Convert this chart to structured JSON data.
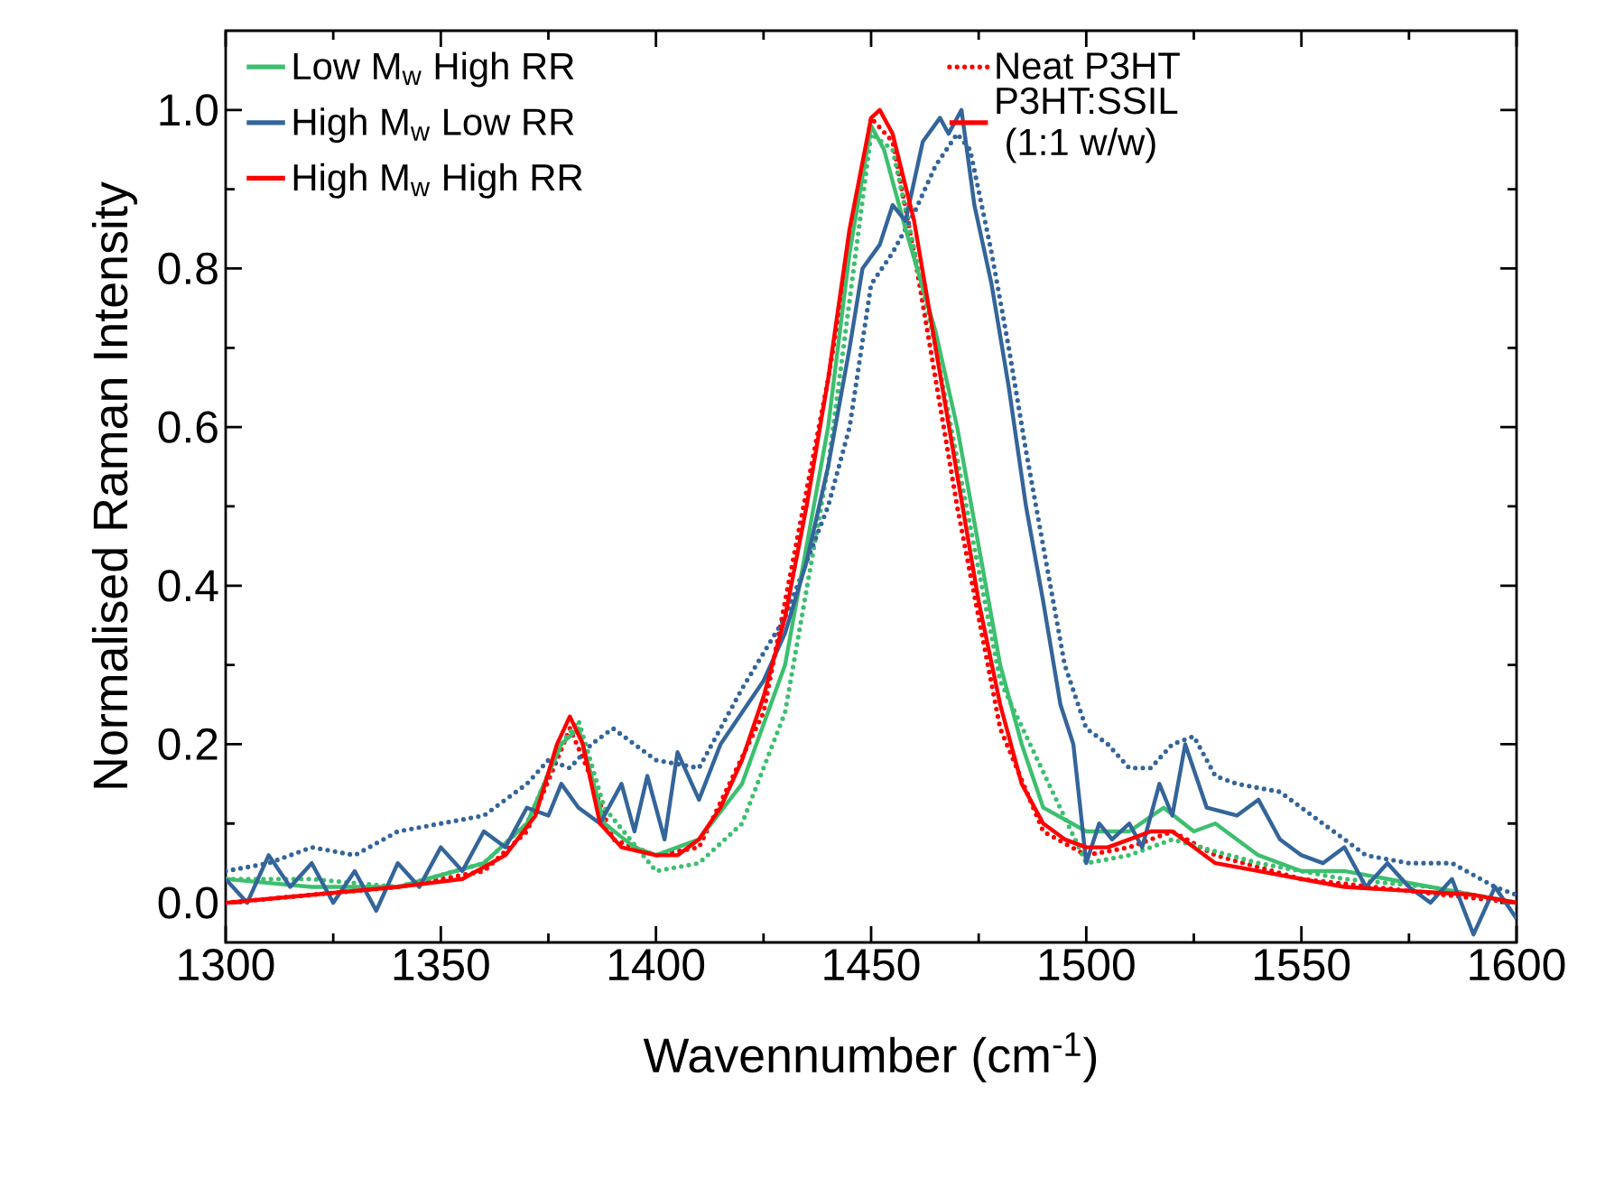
{
  "chart_data": {
    "type": "line",
    "xlabel": "Wavennumber (cm$^{-1}$)",
    "ylabel": "Normalised Raman Intensity",
    "xlim": [
      1300,
      1600
    ],
    "xticks": [
      1300,
      1350,
      1400,
      1450,
      1500,
      1550,
      1600
    ],
    "ylim": [
      -0.05,
      1.1
    ],
    "yticks": [
      {
        "value": 0,
        "label": "0.0"
      },
      {
        "value": 0.2,
        "label": "0.2"
      },
      {
        "value": 0.4,
        "label": "0.4"
      },
      {
        "value": 0.6,
        "label": "0.6"
      },
      {
        "value": 0.8,
        "label": "0.8"
      },
      {
        "value": 1,
        "label": "1.0"
      }
    ],
    "grid": false,
    "legend": "top",
    "marker": "none",
    "annotations": [
      "P3HT:SSIL",
      "(1:1 w/w)"
    ],
    "series": [
      {
        "name": "Low M$_{w}$ High RR",
        "color": "#3dbf6f",
        "line_style": "solid",
        "x": [
          1300,
          1320,
          1340,
          1360,
          1370,
          1378,
          1382,
          1388,
          1395,
          1400,
          1410,
          1420,
          1430,
          1440,
          1445,
          1450,
          1453,
          1458,
          1465,
          1470,
          1475,
          1480,
          1485,
          1490,
          1500,
          1510,
          1518,
          1525,
          1530,
          1540,
          1550,
          1560,
          1570,
          1580,
          1590,
          1600
        ],
        "values": [
          0.03,
          0.02,
          0.02,
          0.05,
          0.1,
          0.2,
          0.22,
          0.1,
          0.07,
          0.06,
          0.08,
          0.15,
          0.3,
          0.6,
          0.82,
          0.98,
          0.95,
          0.85,
          0.72,
          0.6,
          0.45,
          0.3,
          0.2,
          0.12,
          0.09,
          0.09,
          0.12,
          0.09,
          0.1,
          0.06,
          0.04,
          0.04,
          0.03,
          0.02,
          0.01,
          0.0
        ]
      },
      {
        "name": "High M$_{w}$ Low RR",
        "color": "#34659a",
        "line_style": "solid",
        "x": [
          1300,
          1305,
          1310,
          1315,
          1320,
          1325,
          1330,
          1335,
          1340,
          1345,
          1350,
          1355,
          1360,
          1365,
          1370,
          1375,
          1378,
          1382,
          1387,
          1392,
          1395,
          1398,
          1402,
          1405,
          1410,
          1415,
          1420,
          1425,
          1430,
          1435,
          1440,
          1445,
          1448,
          1452,
          1455,
          1458,
          1462,
          1466,
          1468,
          1471,
          1474,
          1478,
          1482,
          1486,
          1490,
          1494,
          1497,
          1500,
          1503,
          1506,
          1510,
          1513,
          1517,
          1520,
          1523,
          1528,
          1535,
          1540,
          1545,
          1550,
          1555,
          1560,
          1565,
          1570,
          1575,
          1580,
          1585,
          1590,
          1595,
          1600
        ],
        "values": [
          0.03,
          0.0,
          0.06,
          0.02,
          0.05,
          0.0,
          0.04,
          -0.01,
          0.05,
          0.02,
          0.07,
          0.04,
          0.09,
          0.07,
          0.12,
          0.11,
          0.15,
          0.12,
          0.1,
          0.15,
          0.09,
          0.16,
          0.08,
          0.19,
          0.13,
          0.2,
          0.24,
          0.28,
          0.34,
          0.43,
          0.55,
          0.7,
          0.8,
          0.83,
          0.88,
          0.86,
          0.96,
          0.99,
          0.97,
          1.0,
          0.88,
          0.78,
          0.65,
          0.5,
          0.38,
          0.25,
          0.2,
          0.05,
          0.1,
          0.08,
          0.1,
          0.07,
          0.15,
          0.11,
          0.2,
          0.12,
          0.11,
          0.13,
          0.08,
          0.06,
          0.05,
          0.07,
          0.02,
          0.05,
          0.02,
          0.0,
          0.03,
          -0.04,
          0.02,
          -0.02
        ]
      },
      {
        "name": "High M$_{w}$ High RR",
        "color": "#ff0000",
        "line_style": "solid",
        "x": [
          1300,
          1320,
          1340,
          1355,
          1365,
          1372,
          1377,
          1380,
          1383,
          1387,
          1392,
          1400,
          1405,
          1410,
          1415,
          1420,
          1425,
          1430,
          1435,
          1440,
          1445,
          1450,
          1452,
          1455,
          1460,
          1465,
          1470,
          1475,
          1480,
          1485,
          1490,
          1495,
          1500,
          1505,
          1510,
          1515,
          1520,
          1525,
          1530,
          1540,
          1550,
          1560,
          1575,
          1590,
          1600
        ],
        "values": [
          0.0,
          0.01,
          0.02,
          0.03,
          0.06,
          0.11,
          0.2,
          0.235,
          0.2,
          0.1,
          0.07,
          0.06,
          0.06,
          0.08,
          0.12,
          0.18,
          0.26,
          0.36,
          0.5,
          0.66,
          0.85,
          0.99,
          1.0,
          0.97,
          0.86,
          0.7,
          0.54,
          0.38,
          0.25,
          0.15,
          0.1,
          0.08,
          0.07,
          0.07,
          0.08,
          0.09,
          0.09,
          0.07,
          0.05,
          0.04,
          0.03,
          0.02,
          0.015,
          0.01,
          0.0
        ]
      },
      {
        "name": "Neat P3HT",
        "color": "#ff0000",
        "line_style": "dotted",
        "x": [
          1300,
          1320,
          1340,
          1360,
          1370,
          1377,
          1380,
          1384,
          1390,
          1400,
          1410,
          1425,
          1440,
          1450,
          1455,
          1460,
          1465,
          1470,
          1480,
          1490,
          1500,
          1510,
          1520,
          1530,
          1550,
          1575,
          1600
        ],
        "values": [
          0.0,
          0.01,
          0.02,
          0.04,
          0.09,
          0.18,
          0.22,
          0.17,
          0.08,
          0.06,
          0.07,
          0.24,
          0.66,
          0.99,
          0.96,
          0.82,
          0.66,
          0.5,
          0.22,
          0.09,
          0.06,
          0.07,
          0.09,
          0.06,
          0.03,
          0.015,
          0.0
        ]
      },
      {
        "color": "#3dbf6f",
        "line_style": "dotted",
        "x": [
          1300,
          1320,
          1340,
          1360,
          1370,
          1378,
          1382,
          1388,
          1400,
          1410,
          1420,
          1430,
          1440,
          1450,
          1455,
          1465,
          1480,
          1500,
          1510,
          1520,
          1540,
          1560,
          1580,
          1600
        ],
        "values": [
          0.03,
          0.03,
          0.02,
          0.05,
          0.1,
          0.2,
          0.23,
          0.12,
          0.04,
          0.05,
          0.1,
          0.24,
          0.55,
          0.97,
          0.95,
          0.7,
          0.28,
          0.05,
          0.06,
          0.08,
          0.05,
          0.03,
          0.02,
          0.0
        ]
      },
      {
        "color": "#34659a",
        "line_style": "dotted",
        "x": [
          1300,
          1310,
          1320,
          1330,
          1340,
          1350,
          1360,
          1370,
          1375,
          1380,
          1385,
          1390,
          1395,
          1400,
          1410,
          1420,
          1430,
          1440,
          1445,
          1450,
          1455,
          1460,
          1465,
          1470,
          1473,
          1478,
          1482,
          1486,
          1490,
          1495,
          1500,
          1505,
          1510,
          1515,
          1520,
          1525,
          1530,
          1535,
          1545,
          1555,
          1565,
          1575,
          1585,
          1595,
          1600
        ],
        "values": [
          0.04,
          0.05,
          0.07,
          0.06,
          0.09,
          0.1,
          0.11,
          0.15,
          0.18,
          0.17,
          0.2,
          0.22,
          0.2,
          0.18,
          0.17,
          0.27,
          0.36,
          0.5,
          0.6,
          0.78,
          0.82,
          0.87,
          0.93,
          0.97,
          0.95,
          0.82,
          0.7,
          0.57,
          0.45,
          0.3,
          0.22,
          0.2,
          0.17,
          0.17,
          0.2,
          0.21,
          0.16,
          0.15,
          0.14,
          0.1,
          0.06,
          0.05,
          0.05,
          0.02,
          0.01
        ]
      }
    ]
  }
}
